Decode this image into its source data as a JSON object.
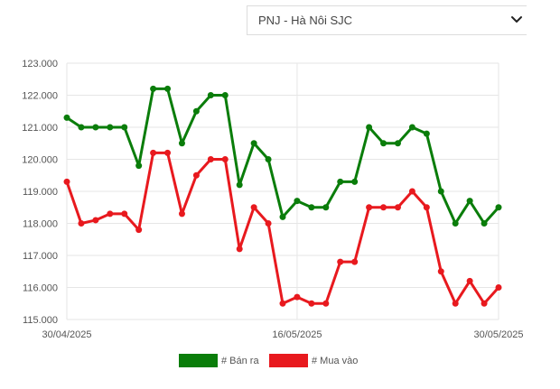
{
  "selector": {
    "value": "PNJ - Hà Nôi SJC",
    "icon": "chevron-down-icon"
  },
  "colors": {
    "ban_ra": "#0a7d0a",
    "mua_vao": "#e8191e",
    "grid": "#e6e6e6",
    "axis_text": "#555555"
  },
  "chart_data": {
    "type": "line",
    "title": "",
    "xlabel": "",
    "ylabel": "",
    "ylim": [
      115000,
      123000
    ],
    "y_ticks": [
      "115.000",
      "116.000",
      "117.000",
      "118.000",
      "119.000",
      "120.000",
      "121.000",
      "122.000",
      "123.000"
    ],
    "x_tick_labels": [
      "30/04/2025",
      "16/05/2025",
      "30/05/2025"
    ],
    "x_tick_index": [
      0,
      16,
      30
    ],
    "grid": true,
    "legend_position": "bottom",
    "series": [
      {
        "name": "# Bán ra",
        "color": "#0a7d0a",
        "values": [
          121300,
          121000,
          121000,
          121000,
          121000,
          119800,
          122200,
          122200,
          120500,
          121500,
          122000,
          122000,
          119200,
          120500,
          120000,
          118200,
          118700,
          118500,
          118500,
          119300,
          119300,
          121000,
          120500,
          120500,
          121000,
          120800,
          119000,
          118000,
          118700,
          118000,
          118500
        ]
      },
      {
        "name": "# Mua vào",
        "color": "#e8191e",
        "values": [
          119300,
          118000,
          118100,
          118300,
          118300,
          117800,
          120200,
          120200,
          118300,
          119500,
          120000,
          120000,
          117200,
          118500,
          118000,
          115500,
          115700,
          115500,
          115500,
          116800,
          116800,
          118500,
          118500,
          118500,
          119000,
          118500,
          116500,
          115500,
          116200,
          115500,
          116000
        ]
      }
    ]
  }
}
